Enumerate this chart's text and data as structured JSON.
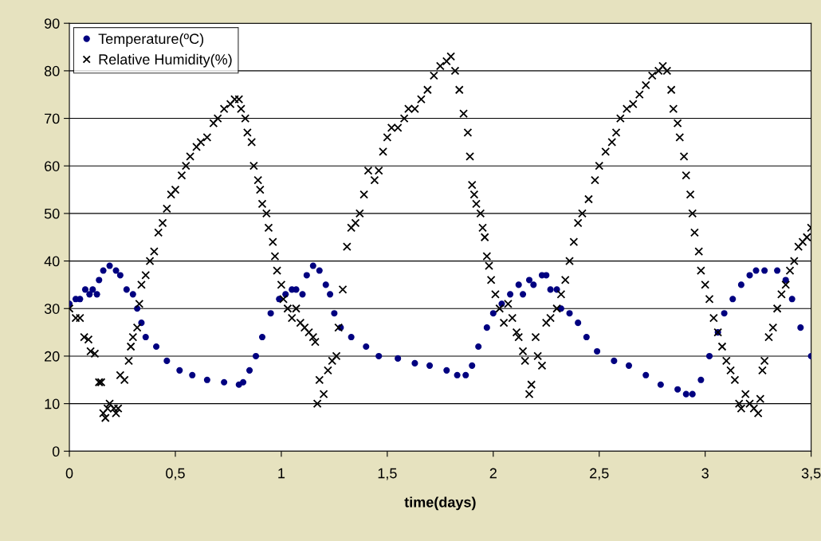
{
  "chart_data": {
    "type": "scatter",
    "xlabel": "time(days)",
    "xlim": [
      0,
      3.5
    ],
    "ylim": [
      0,
      90
    ],
    "xticks": [
      0,
      {
        "value": 0.5,
        "label": "0,5"
      },
      1,
      {
        "value": 1.5,
        "label": "1,5"
      },
      2,
      {
        "value": 2.5,
        "label": "2,5"
      },
      3,
      {
        "value": 3.5,
        "label": "3,5"
      }
    ],
    "yticks": [
      0,
      10,
      20,
      30,
      40,
      50,
      60,
      70,
      80,
      90
    ],
    "grid": "y",
    "legend": "top left",
    "series": [
      {
        "name": "Temperature(ºC)",
        "color": "#000080",
        "marker": "circle",
        "x": [
          0,
          0.03,
          0.05,
          0.075,
          0.095,
          0.11,
          0.13,
          0.14,
          0.16,
          0.19,
          0.22,
          0.24,
          0.27,
          0.3,
          0.32,
          0.34,
          0.36,
          0.41,
          0.46,
          0.52,
          0.58,
          0.65,
          0.73,
          0.8,
          0.82,
          0.85,
          0.88,
          0.91,
          0.95,
          0.99,
          1.02,
          1.05,
          1.07,
          1.1,
          1.12,
          1.15,
          1.18,
          1.21,
          1.23,
          1.25,
          1.28,
          1.33,
          1.4,
          1.46,
          1.55,
          1.63,
          1.7,
          1.78,
          1.83,
          1.87,
          1.9,
          1.93,
          1.97,
          2.0,
          2.04,
          2.08,
          2.12,
          2.14,
          2.17,
          2.19,
          2.23,
          2.25,
          2.27,
          2.3,
          2.32,
          2.36,
          2.4,
          2.44,
          2.49,
          2.57,
          2.64,
          2.72,
          2.79,
          2.87,
          2.91,
          2.94,
          2.98,
          3.02,
          3.06,
          3.09,
          3.13,
          3.17,
          3.21,
          3.24,
          3.28,
          3.34,
          3.38,
          3.41,
          3.45,
          3.5
        ],
        "values": [
          31,
          32,
          32,
          34,
          33,
          34,
          33,
          36,
          38,
          39,
          38,
          37,
          34,
          33,
          30,
          27,
          24,
          22,
          19,
          17,
          16,
          15,
          14.5,
          14,
          14.5,
          17,
          20,
          24,
          29,
          32,
          33,
          34,
          34,
          33,
          37,
          39,
          38,
          35,
          33,
          29,
          26,
          24,
          22,
          20,
          19.5,
          18.5,
          18,
          17,
          16,
          16,
          18,
          22,
          26,
          29,
          31,
          33,
          35,
          33,
          36,
          35,
          37,
          37,
          34,
          34,
          30,
          29,
          27,
          24,
          21,
          19,
          18,
          16,
          14,
          13,
          12,
          12,
          15,
          20,
          25,
          29,
          32,
          35,
          37,
          38,
          38,
          38,
          36,
          32,
          26,
          20
        ]
      },
      {
        "name": "Relative Humidity(%)",
        "color": "#000000",
        "marker": "cross",
        "x": [
          0,
          0.03,
          0.05,
          0.07,
          0.09,
          0.1,
          0.12,
          0.14,
          0.15,
          0.16,
          0.17,
          0.18,
          0.19,
          0.21,
          0.22,
          0.23,
          0.24,
          0.26,
          0.28,
          0.29,
          0.3,
          0.32,
          0.33,
          0.34,
          0.36,
          0.38,
          0.4,
          0.42,
          0.44,
          0.46,
          0.48,
          0.5,
          0.53,
          0.55,
          0.57,
          0.6,
          0.62,
          0.65,
          0.68,
          0.7,
          0.73,
          0.76,
          0.78,
          0.8,
          0.81,
          0.83,
          0.84,
          0.86,
          0.87,
          0.89,
          0.9,
          0.91,
          0.93,
          0.94,
          0.96,
          0.97,
          0.98,
          1.0,
          1.01,
          1.03,
          1.05,
          1.07,
          1.09,
          1.11,
          1.13,
          1.15,
          1.16,
          1.17,
          1.18,
          1.2,
          1.22,
          1.24,
          1.26,
          1.27,
          1.29,
          1.31,
          1.33,
          1.35,
          1.37,
          1.39,
          1.41,
          1.44,
          1.46,
          1.48,
          1.5,
          1.52,
          1.55,
          1.58,
          1.6,
          1.63,
          1.66,
          1.69,
          1.72,
          1.75,
          1.78,
          1.8,
          1.82,
          1.84,
          1.86,
          1.88,
          1.89,
          1.9,
          1.91,
          1.92,
          1.94,
          1.95,
          1.96,
          1.97,
          1.98,
          1.99,
          2.01,
          2.03,
          2.05,
          2.07,
          2.09,
          2.11,
          2.12,
          2.14,
          2.15,
          2.17,
          2.18,
          2.2,
          2.21,
          2.23,
          2.25,
          2.27,
          2.3,
          2.32,
          2.34,
          2.36,
          2.38,
          2.4,
          2.42,
          2.45,
          2.48,
          2.5,
          2.53,
          2.56,
          2.58,
          2.6,
          2.63,
          2.66,
          2.69,
          2.72,
          2.75,
          2.78,
          2.8,
          2.82,
          2.84,
          2.85,
          2.87,
          2.88,
          2.9,
          2.91,
          2.93,
          2.94,
          2.95,
          2.97,
          2.98,
          3.0,
          3.02,
          3.04,
          3.06,
          3.08,
          3.1,
          3.12,
          3.14,
          3.16,
          3.17,
          3.19,
          3.21,
          3.23,
          3.25,
          3.26,
          3.27,
          3.28,
          3.3,
          3.32,
          3.34,
          3.36,
          3.38,
          3.4,
          3.42,
          3.44,
          3.46,
          3.48,
          3.5
        ],
        "values": [
          30,
          28,
          28,
          24,
          23.5,
          21,
          20.5,
          14.5,
          14.5,
          8,
          7,
          9,
          10,
          9,
          8,
          9,
          16,
          15,
          19,
          22,
          24,
          26,
          31,
          35,
          37,
          40,
          42,
          46,
          48,
          51,
          54,
          55,
          58,
          60,
          62,
          64,
          65,
          66,
          69,
          70,
          72,
          73,
          74,
          74,
          72,
          70,
          67,
          65,
          60,
          57,
          55,
          52,
          50,
          47,
          44,
          41,
          38,
          35,
          32,
          30,
          28,
          30,
          27,
          26,
          25,
          24,
          23,
          10,
          15,
          12,
          17,
          19,
          20,
          26,
          34,
          43,
          47,
          48,
          50,
          54,
          59,
          57,
          59,
          63,
          66,
          68,
          68,
          70,
          72,
          72,
          74,
          76,
          79,
          81,
          82,
          83,
          80,
          76,
          71,
          67,
          62,
          56,
          54,
          52,
          50,
          47,
          45,
          41,
          39,
          36,
          33,
          30,
          27,
          31,
          28,
          25,
          24,
          21,
          19,
          12,
          14,
          24,
          20,
          18,
          27,
          28,
          30,
          33,
          36,
          40,
          44,
          48,
          50,
          53,
          57,
          60,
          63,
          65,
          67,
          70,
          72,
          73,
          75,
          77,
          79,
          80,
          81,
          80,
          76,
          72,
          69,
          66,
          62,
          58,
          54,
          50,
          46,
          42,
          38,
          35,
          32,
          28,
          25,
          22,
          19,
          17,
          15,
          10,
          9,
          12,
          10,
          9,
          8,
          11,
          17,
          19,
          24,
          26,
          30,
          33,
          35,
          38,
          40,
          43,
          44,
          45,
          47
        ]
      }
    ]
  }
}
